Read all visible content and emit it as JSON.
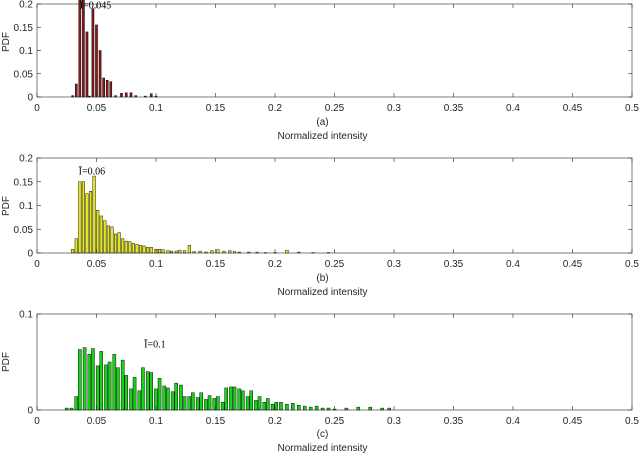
{
  "chart_data": [
    {
      "type": "bar",
      "panel_label": "(a)",
      "xlabel": "Normalized intensity",
      "ylabel": "PDF",
      "xlim": [
        0,
        0.5
      ],
      "ylim": [
        0,
        0.2
      ],
      "xticks": [
        "0",
        "0.05",
        "0.1",
        "0.15",
        "0.2",
        "0.25",
        "0.3",
        "0.35",
        "0.4",
        "0.45",
        "0.5"
      ],
      "yticks": [
        "0",
        "0.05",
        "0.1",
        "0.15",
        "0.2"
      ],
      "annotation": "Ī=0.045",
      "bar_color": "#8b1a1a",
      "bin_width": 0.0018,
      "x": [
        0.03,
        0.033,
        0.036,
        0.039,
        0.042,
        0.044,
        0.047,
        0.05,
        0.053,
        0.056,
        0.059,
        0.062,
        0.066,
        0.071,
        0.075,
        0.079,
        0.083,
        0.091,
        0.096,
        0.1
      ],
      "values": [
        0.003,
        0.028,
        0.218,
        0.212,
        0.14,
        0.002,
        0.19,
        0.155,
        0.1,
        0.041,
        0.036,
        0.033,
        0.003,
        0.008,
        0.009,
        0.009,
        0.003,
        0.002,
        0.007,
        0.002
      ]
    },
    {
      "type": "bar",
      "panel_label": "(b)",
      "xlabel": "Normalized intensity",
      "ylabel": "PDF",
      "xlim": [
        0,
        0.5
      ],
      "ylim": [
        0,
        0.2
      ],
      "xticks": [
        "0",
        "0.05",
        "0.1",
        "0.15",
        "0.2",
        "0.25",
        "0.3",
        "0.35",
        "0.4",
        "0.45",
        "0.5"
      ],
      "yticks": [
        "0",
        "0.05",
        "0.1",
        "0.15",
        "0.2"
      ],
      "annotation": "Ī=0.06",
      "bar_color": "#e6e619",
      "bin_width": 0.0022,
      "x": [
        0.03,
        0.033,
        0.036,
        0.039,
        0.042,
        0.045,
        0.048,
        0.051,
        0.054,
        0.057,
        0.06,
        0.063,
        0.066,
        0.069,
        0.072,
        0.075,
        0.078,
        0.081,
        0.084,
        0.087,
        0.09,
        0.093,
        0.096,
        0.1,
        0.103,
        0.106,
        0.11,
        0.113,
        0.117,
        0.12,
        0.124,
        0.128,
        0.132,
        0.137,
        0.142,
        0.147,
        0.152,
        0.157,
        0.162,
        0.166,
        0.17,
        0.178,
        0.185,
        0.192,
        0.2,
        0.21,
        0.22,
        0.232,
        0.245
      ],
      "values": [
        0.008,
        0.03,
        0.15,
        0.15,
        0.125,
        0.13,
        0.162,
        0.09,
        0.078,
        0.068,
        0.057,
        0.055,
        0.04,
        0.043,
        0.03,
        0.025,
        0.024,
        0.02,
        0.018,
        0.016,
        0.015,
        0.012,
        0.012,
        0.008,
        0.008,
        0.007,
        0.005,
        0.004,
        0.004,
        0.006,
        0.005,
        0.016,
        0.003,
        0.004,
        0.002,
        0.005,
        0.007,
        0.004,
        0.005,
        0.003,
        0.002,
        0.002,
        0.002,
        0.001,
        0.001,
        0.006,
        0.002,
        0.001,
        0.001
      ]
    },
    {
      "type": "bar",
      "panel_label": "(c)",
      "xlabel": "Normalized intensity",
      "ylabel": "PDF",
      "xlim": [
        0,
        0.5
      ],
      "ylim": [
        0,
        0.1
      ],
      "xticks": [
        "0",
        "0.05",
        "0.1",
        "0.15",
        "0.2",
        "0.25",
        "0.3",
        "0.35",
        "0.4",
        "0.45",
        "0.5"
      ],
      "yticks": [
        "0",
        "0.1"
      ],
      "annotation": "Ī=0.1",
      "bar_color": "#1bd01b",
      "bin_width": 0.0026,
      "x": [
        0.025,
        0.029,
        0.033,
        0.036,
        0.04,
        0.044,
        0.047,
        0.051,
        0.054,
        0.058,
        0.061,
        0.065,
        0.068,
        0.072,
        0.075,
        0.079,
        0.082,
        0.086,
        0.089,
        0.093,
        0.096,
        0.1,
        0.103,
        0.107,
        0.11,
        0.114,
        0.117,
        0.121,
        0.124,
        0.128,
        0.131,
        0.135,
        0.138,
        0.142,
        0.145,
        0.149,
        0.152,
        0.156,
        0.159,
        0.163,
        0.166,
        0.17,
        0.173,
        0.177,
        0.18,
        0.184,
        0.187,
        0.191,
        0.194,
        0.198,
        0.201,
        0.205,
        0.21,
        0.215,
        0.22,
        0.225,
        0.23,
        0.235,
        0.24,
        0.245,
        0.25,
        0.26,
        0.27,
        0.28,
        0.29,
        0.296
      ],
      "values": [
        0.002,
        0.002,
        0.014,
        0.063,
        0.065,
        0.058,
        0.064,
        0.046,
        0.061,
        0.047,
        0.05,
        0.058,
        0.044,
        0.052,
        0.036,
        0.022,
        0.034,
        0.02,
        0.044,
        0.04,
        0.039,
        0.022,
        0.033,
        0.025,
        0.023,
        0.019,
        0.028,
        0.026,
        0.014,
        0.014,
        0.018,
        0.013,
        0.018,
        0.011,
        0.015,
        0.012,
        0.014,
        0.008,
        0.023,
        0.024,
        0.024,
        0.022,
        0.02,
        0.014,
        0.02,
        0.01,
        0.014,
        0.008,
        0.012,
        0.006,
        0.008,
        0.008,
        0.006,
        0.007,
        0.005,
        0.004,
        0.003,
        0.004,
        0.002,
        0.002,
        0.001,
        0.002,
        0.003,
        0.003,
        0.002,
        0.002
      ]
    }
  ]
}
